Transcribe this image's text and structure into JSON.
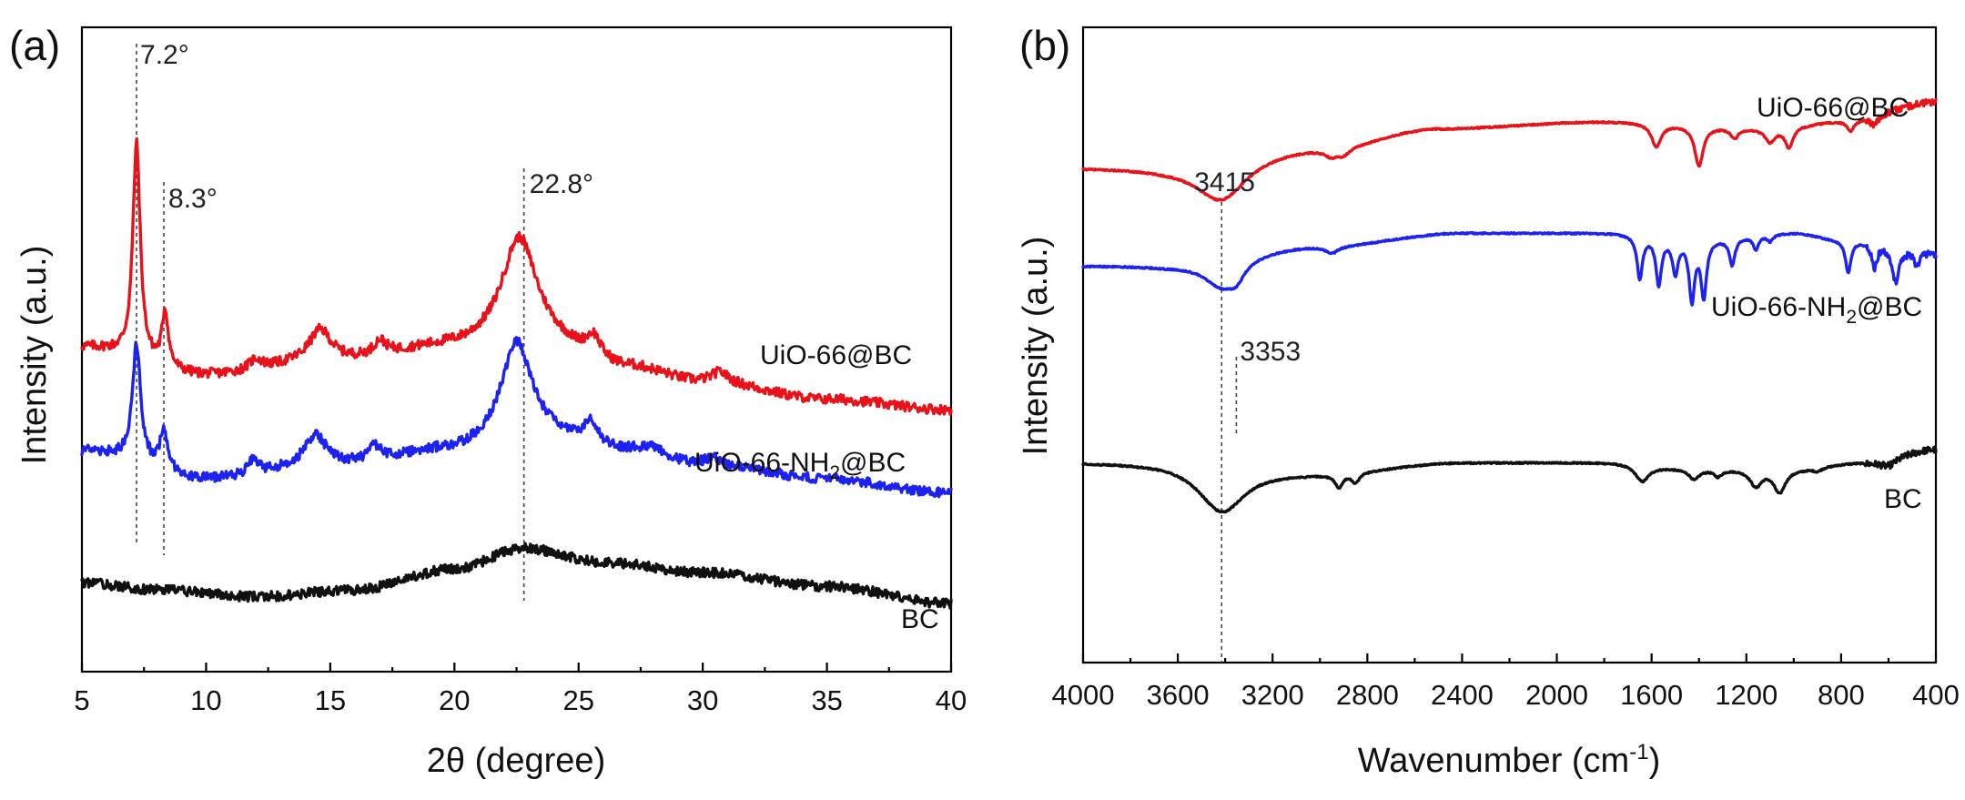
{
  "chart_data": [
    {
      "panel": "(a)",
      "type": "line",
      "xlabel": "2θ (degree)",
      "ylabel": "Intensity (a.u.)",
      "xlim": [
        5,
        40
      ],
      "xticks": [
        5,
        10,
        15,
        20,
        25,
        30,
        35,
        40
      ],
      "annotations": [
        {
          "text": "7.2°",
          "x": 7.2
        },
        {
          "text": "8.3°",
          "x": 8.3
        },
        {
          "text": "22.8°",
          "x": 22.8
        }
      ],
      "series": [
        {
          "name": "UiO-66@BC",
          "color": "#e8121a",
          "baseline": [
            [
              5,
              0.1
            ],
            [
              10,
              0.02
            ],
            [
              15,
              0.06
            ],
            [
              20,
              0.1
            ],
            [
              23,
              0.12
            ],
            [
              27,
              0.04
            ],
            [
              30,
              0.0
            ],
            [
              35,
              -0.05
            ],
            [
              40,
              -0.08
            ]
          ],
          "peaks": [
            [
              7.2,
              0.62,
              0.18
            ],
            [
              8.35,
              0.16,
              0.15
            ],
            [
              12.0,
              0.03,
              0.3
            ],
            [
              14.6,
              0.09,
              0.55
            ],
            [
              17.0,
              0.04,
              0.3
            ],
            [
              22.6,
              0.3,
              0.85
            ],
            [
              25.6,
              0.06,
              0.35
            ],
            [
              30.7,
              0.03,
              0.4
            ]
          ]
        },
        {
          "name": "UiO-66-NH2@BC",
          "color": "#1d22f0",
          "baseline": [
            [
              5,
              -0.2
            ],
            [
              10,
              -0.28
            ],
            [
              15,
              -0.24
            ],
            [
              20,
              -0.2
            ],
            [
              23,
              -0.16
            ],
            [
              27,
              -0.2
            ],
            [
              30,
              -0.24
            ],
            [
              35,
              -0.28
            ],
            [
              40,
              -0.32
            ]
          ],
          "peaks": [
            [
              7.2,
              0.34,
              0.2
            ],
            [
              8.3,
              0.12,
              0.18
            ],
            [
              11.9,
              0.04,
              0.25
            ],
            [
              14.4,
              0.09,
              0.5
            ],
            [
              16.8,
              0.04,
              0.3
            ],
            [
              22.5,
              0.28,
              0.75
            ],
            [
              25.5,
              0.07,
              0.3
            ],
            [
              28,
              0.02,
              0.5
            ],
            [
              30.4,
              0.02,
              0.4
            ]
          ]
        },
        {
          "name": "BC",
          "color": "#111111",
          "baseline": [
            [
              5,
              -0.58
            ],
            [
              8,
              -0.6
            ],
            [
              12,
              -0.62
            ],
            [
              16,
              -0.6
            ],
            [
              20,
              -0.54
            ],
            [
              22.8,
              -0.48
            ],
            [
              26,
              -0.52
            ],
            [
              30,
              -0.55
            ],
            [
              35,
              -0.59
            ],
            [
              40,
              -0.64
            ]
          ],
          "peaks": []
        }
      ],
      "labels": [
        "UiO-66@BC",
        "UiO-66-NH",
        "2",
        "@BC",
        "BC"
      ]
    },
    {
      "panel": "(b)",
      "type": "line",
      "xlabel": "Wavenumber (cm",
      "xlabel_sup": "-1",
      "xlabel_end": ")",
      "ylabel": "Intensity (a.u.)",
      "xlim": [
        4000,
        400
      ],
      "xticks": [
        4000,
        3600,
        3200,
        2800,
        2400,
        2000,
        1600,
        1200,
        800,
        400
      ],
      "annotations": [
        {
          "text": "3415",
          "x": 3415
        },
        {
          "text": "3353",
          "x": 3353
        }
      ],
      "series": [
        {
          "name": "UiO-66@BC",
          "color": "#e8121a",
          "baseline": [
            [
              4000,
              0.6
            ],
            [
              3700,
              0.6
            ],
            [
              3000,
              0.66
            ],
            [
              2500,
              0.72
            ],
            [
              1800,
              0.74
            ],
            [
              1100,
              0.72
            ],
            [
              800,
              0.74
            ],
            [
              400,
              0.8
            ]
          ],
          "bands": [
            [
              3415,
              0.12,
              130
            ],
            [
              2950,
              0.02,
              30
            ],
            [
              2900,
              0.02,
              30
            ],
            [
              1580,
              0.07,
              25
            ],
            [
              1400,
              0.12,
              22
            ],
            [
              1250,
              0.03,
              20
            ],
            [
              1100,
              0.04,
              25
            ],
            [
              1020,
              0.06,
              20
            ],
            [
              760,
              0.03,
              15
            ],
            [
              660,
              0.03,
              15
            ]
          ]
        },
        {
          "name": "UiO-66-NH2@BC",
          "color": "#1d22f0",
          "baseline": [
            [
              4000,
              0.3
            ],
            [
              3700,
              0.3
            ],
            [
              3000,
              0.36
            ],
            [
              2400,
              0.4
            ],
            [
              1800,
              0.4
            ],
            [
              1400,
              0.38
            ],
            [
              1000,
              0.4
            ],
            [
              800,
              0.38
            ],
            [
              400,
              0.34
            ]
          ],
          "bands": [
            [
              3415,
              0.08,
              90
            ],
            [
              3353,
              0.04,
              40
            ],
            [
              2950,
              0.02,
              30
            ],
            [
              1650,
              0.13,
              14
            ],
            [
              1570,
              0.14,
              14
            ],
            [
              1500,
              0.1,
              14
            ],
            [
              1430,
              0.18,
              14
            ],
            [
              1380,
              0.17,
              14
            ],
            [
              1260,
              0.08,
              14
            ],
            [
              1160,
              0.04,
              14
            ],
            [
              1100,
              0.02,
              14
            ],
            [
              770,
              0.1,
              14
            ],
            [
              660,
              0.07,
              14
            ],
            [
              570,
              0.1,
              18
            ],
            [
              480,
              0.04,
              14
            ]
          ]
        },
        {
          "name": "BC",
          "color": "#111111",
          "baseline": [
            [
              4000,
              -0.3
            ],
            [
              3700,
              -0.3
            ],
            [
              3000,
              -0.33
            ],
            [
              2400,
              -0.3
            ],
            [
              1800,
              -0.3
            ],
            [
              1400,
              -0.32
            ],
            [
              1000,
              -0.32
            ],
            [
              700,
              -0.3
            ],
            [
              400,
              -0.26
            ]
          ],
          "bands": [
            [
              3415,
              0.14,
              120
            ],
            [
              2920,
              0.04,
              20
            ],
            [
              2850,
              0.03,
              20
            ],
            [
              1640,
              0.05,
              35
            ],
            [
              1420,
              0.03,
              25
            ],
            [
              1320,
              0.02,
              20
            ],
            [
              1160,
              0.05,
              30
            ],
            [
              1060,
              0.07,
              30
            ],
            [
              900,
              0.01,
              20
            ],
            [
              600,
              0.02,
              40
            ]
          ]
        }
      ],
      "labels": [
        "UiO-66@BC",
        "UiO-66-NH",
        "2",
        "@BC",
        "BC"
      ]
    }
  ]
}
